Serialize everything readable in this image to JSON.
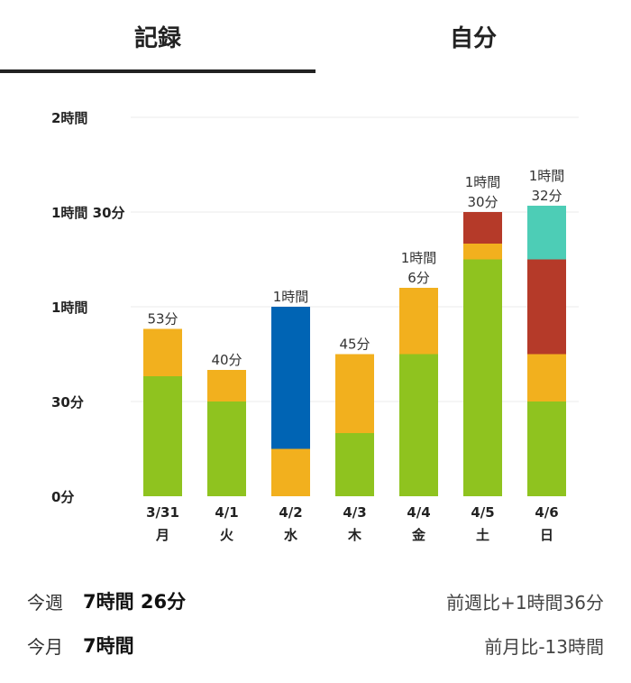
{
  "tabs": {
    "record": "記録",
    "self": "自分"
  },
  "chart_data": {
    "type": "bar",
    "stacked": true,
    "unit": "minutes",
    "ylim": [
      0,
      120
    ],
    "yticks": [
      {
        "value": 0,
        "label": "0分"
      },
      {
        "value": 30,
        "label": "30分"
      },
      {
        "value": 60,
        "label": "1時間"
      },
      {
        "value": 90,
        "label": "1時間 30分"
      },
      {
        "value": 120,
        "label": "2時間"
      }
    ],
    "categories": [
      {
        "date": "3/31",
        "weekday": "月"
      },
      {
        "date": "4/1",
        "weekday": "火"
      },
      {
        "date": "4/2",
        "weekday": "水"
      },
      {
        "date": "4/3",
        "weekday": "木"
      },
      {
        "date": "4/4",
        "weekday": "金"
      },
      {
        "date": "4/5",
        "weekday": "土"
      },
      {
        "date": "4/6",
        "weekday": "日"
      }
    ],
    "totals": [
      [
        "53分"
      ],
      [
        "40分"
      ],
      [
        "1時間"
      ],
      [
        "45分"
      ],
      [
        "1時間",
        "6分"
      ],
      [
        "1時間",
        "30分"
      ],
      [
        "1時間",
        "32分"
      ]
    ],
    "series": [
      {
        "name": "green",
        "color": "#8fc31f",
        "values": [
          38,
          30,
          0,
          20,
          45,
          75,
          30
        ]
      },
      {
        "name": "orange",
        "color": "#f2b01e",
        "values": [
          15,
          10,
          15,
          25,
          21,
          5,
          15
        ]
      },
      {
        "name": "blue",
        "color": "#0064b4",
        "values": [
          0,
          0,
          45,
          0,
          0,
          0,
          0
        ]
      },
      {
        "name": "red",
        "color": "#b53a29",
        "values": [
          0,
          0,
          0,
          0,
          0,
          10,
          30
        ]
      },
      {
        "name": "teal",
        "color": "#4dcdb6",
        "values": [
          0,
          0,
          0,
          0,
          0,
          0,
          17
        ]
      }
    ]
  },
  "summary": {
    "week": {
      "label": "今週",
      "value": "7時間 26分",
      "compare": "前週比+1時間36分"
    },
    "month": {
      "label": "今月",
      "value": "7時間",
      "compare": "前月比-13時間"
    }
  }
}
